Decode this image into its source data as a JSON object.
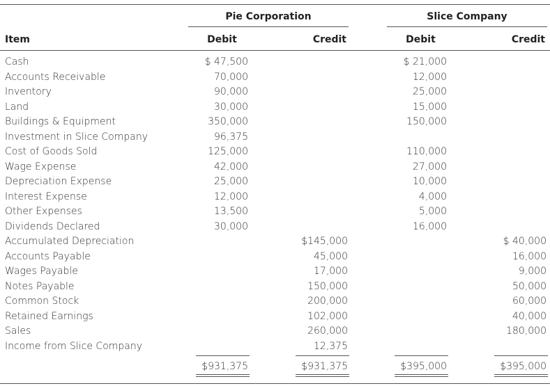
{
  "table": {
    "group_headers": [
      "Pie Corporation",
      "Slice Company"
    ],
    "columns": [
      "Item",
      "Debit",
      "Credit",
      "Debit",
      "Credit"
    ],
    "rows": [
      [
        "Cash",
        "$ 47,500",
        null,
        "$ 21,000",
        null
      ],
      [
        "Accounts Receivable",
        "70,000",
        null,
        "12,000",
        null
      ],
      [
        "Inventory",
        "90,000",
        null,
        "25,000",
        null
      ],
      [
        "Land",
        "30,000",
        null,
        "15,000",
        null
      ],
      [
        "Buildings & Equipment",
        "350,000",
        null,
        "150,000",
        null
      ],
      [
        "Investment in Slice Company",
        "96,375",
        null,
        null,
        null
      ],
      [
        "Cost of Goods Sold",
        "125,000",
        null,
        "110,000",
        null
      ],
      [
        "Wage Expense",
        "42,000",
        null,
        "27,000",
        null
      ],
      [
        "Depreciation Expense",
        "25,000",
        null,
        "10,000",
        null
      ],
      [
        "Interest Expense",
        "12,000",
        null,
        "4,000",
        null
      ],
      [
        "Other Expenses",
        "13,500",
        null,
        "5,000",
        null
      ],
      [
        "Dividends Declared",
        "30,000",
        null,
        "16,000",
        null
      ],
      [
        "Accumulated Depreciation",
        null,
        "$145,000",
        null,
        "$ 40,000"
      ],
      [
        "Accounts Payable",
        null,
        "45,000",
        null,
        "16,000"
      ],
      [
        "Wages Payable",
        null,
        "17,000",
        null,
        "9,000"
      ],
      [
        "Notes Payable",
        null,
        "150,000",
        null,
        "50,000"
      ],
      [
        "Common Stock",
        null,
        "200,000",
        null,
        "60,000"
      ],
      [
        "Retained Earnings",
        null,
        "102,000",
        null,
        "40,000"
      ],
      [
        "Sales",
        null,
        "260,000",
        null,
        "180,000"
      ],
      [
        "Income from Slice Company",
        null,
        "12,375",
        null,
        null
      ]
    ],
    "totals": [
      "$931,375",
      "$931,375",
      "$395,000",
      "$395,000"
    ]
  }
}
